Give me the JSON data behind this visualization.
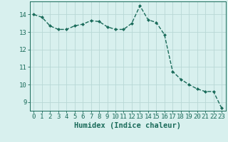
{
  "x": [
    0,
    1,
    2,
    3,
    4,
    5,
    6,
    7,
    8,
    9,
    10,
    11,
    12,
    13,
    14,
    15,
    16,
    17,
    18,
    19,
    20,
    21,
    22,
    23
  ],
  "y": [
    14.0,
    13.85,
    13.35,
    13.15,
    13.15,
    13.35,
    13.45,
    13.65,
    13.6,
    13.3,
    13.15,
    13.15,
    13.5,
    14.5,
    13.7,
    13.55,
    12.85,
    10.75,
    10.3,
    10.0,
    9.75,
    9.6,
    9.6,
    8.65
  ],
  "line_color": "#1a6b5a",
  "marker": "D",
  "marker_size": 2.0,
  "background_color": "#d8f0ee",
  "grid_color": "#b8d8d5",
  "xlabel": "Humidex (Indice chaleur)",
  "xlim": [
    -0.5,
    23.5
  ],
  "ylim": [
    8.5,
    14.75
  ],
  "xtick_labels": [
    "0",
    "1",
    "2",
    "3",
    "4",
    "5",
    "6",
    "7",
    "8",
    "9",
    "10",
    "11",
    "12",
    "13",
    "14",
    "15",
    "16",
    "17",
    "18",
    "19",
    "20",
    "21",
    "22",
    "23"
  ],
  "ytick_values": [
    9,
    10,
    11,
    12,
    13,
    14
  ],
  "text_color": "#1a6b5a",
  "font_size": 6.5,
  "xlabel_fontsize": 7.5,
  "line_width": 1.0
}
